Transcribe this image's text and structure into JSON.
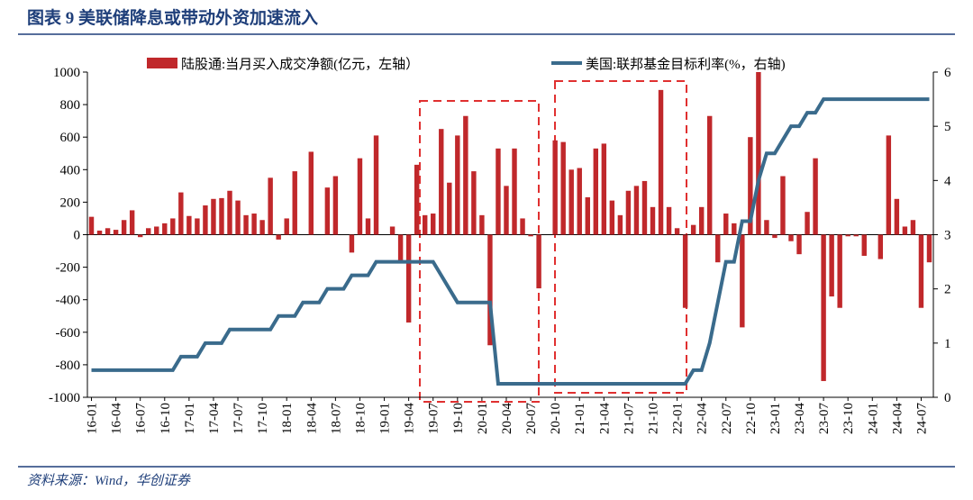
{
  "chart_data": {
    "type": "bar_line",
    "title": "图表 9 美联储降息或带动外资加速流入",
    "source": "资料来源：Wind，华创证券",
    "categories": [
      "16-01",
      null,
      null,
      "16-04",
      null,
      null,
      "16-07",
      null,
      null,
      "16-10",
      null,
      null,
      "17-01",
      null,
      null,
      "17-04",
      null,
      null,
      "17-07",
      null,
      null,
      "17-10",
      null,
      null,
      "18-01",
      null,
      null,
      "18-04",
      null,
      null,
      "18-07",
      null,
      null,
      "18-10",
      null,
      null,
      "19-01",
      null,
      null,
      "19-04",
      null,
      null,
      "19-07",
      null,
      null,
      "19-10",
      null,
      null,
      "20-01",
      null,
      null,
      "20-04",
      null,
      null,
      "20-07",
      null,
      null,
      "20-10",
      null,
      null,
      "21-01",
      null,
      null,
      "21-04",
      null,
      null,
      "21-07",
      null,
      null,
      "21-10",
      null,
      null,
      "22-01",
      null,
      null,
      "22-04",
      null,
      null,
      "22-07",
      null,
      null,
      "22-10",
      null,
      null,
      "23-01",
      null,
      null,
      "23-04",
      null,
      null,
      "23-07",
      null,
      null,
      "23-10",
      null,
      null,
      "24-01",
      null,
      null,
      "24-04",
      null,
      null,
      "24-07",
      null
    ],
    "series": [
      {
        "name": "陆股通:当月买入成交净额(亿元，左轴）",
        "type": "bar",
        "color": "#c0282b",
        "values": [
          110,
          25,
          40,
          30,
          90,
          150,
          -15,
          40,
          50,
          70,
          100,
          260,
          115,
          100,
          180,
          220,
          225,
          270,
          210,
          120,
          130,
          90,
          350,
          -30,
          100,
          390,
          0,
          510,
          0,
          290,
          360,
          0,
          -110,
          470,
          100,
          610,
          0,
          50,
          -170,
          -540,
          430,
          120,
          130,
          650,
          320,
          610,
          730,
          390,
          120,
          -680,
          530,
          300,
          530,
          100,
          -10,
          -330,
          0,
          580,
          570,
          400,
          410,
          230,
          530,
          560,
          210,
          120,
          270,
          300,
          330,
          170,
          890,
          170,
          40,
          -450,
          60,
          170,
          730,
          -170,
          130,
          70,
          -570,
          600,
          1000,
          90,
          -20,
          360,
          -40,
          -120,
          140,
          470,
          -900,
          -380,
          -450,
          -10,
          -10,
          -130,
          0,
          -150,
          610,
          220,
          50,
          90,
          -450,
          -170
        ]
      },
      {
        "name": "美国:联邦基金目标利率(%，右轴)",
        "type": "line",
        "axis": "y2",
        "color": "#3a6b8c",
        "values": [
          0.5,
          0.5,
          0.5,
          0.5,
          0.5,
          0.5,
          0.5,
          0.5,
          0.5,
          0.5,
          0.5,
          0.75,
          0.75,
          0.75,
          1,
          1,
          1,
          1.25,
          1.25,
          1.25,
          1.25,
          1.25,
          1.25,
          1.5,
          1.5,
          1.5,
          1.75,
          1.75,
          1.75,
          2,
          2,
          2,
          2.25,
          2.25,
          2.25,
          2.5,
          2.5,
          2.5,
          2.5,
          2.5,
          2.5,
          2.5,
          2.5,
          2.25,
          2,
          1.75,
          1.75,
          1.75,
          1.75,
          1.75,
          0.25,
          0.25,
          0.25,
          0.25,
          0.25,
          0.25,
          0.25,
          0.25,
          0.25,
          0.25,
          0.25,
          0.25,
          0.25,
          0.25,
          0.25,
          0.25,
          0.25,
          0.25,
          0.25,
          0.25,
          0.25,
          0.25,
          0.25,
          0.25,
          0.5,
          0.5,
          1,
          1.75,
          2.5,
          2.5,
          3.25,
          3.25,
          4,
          4.5,
          4.5,
          4.75,
          5,
          5,
          5.25,
          5.25,
          5.5,
          5.5,
          5.5,
          5.5,
          5.5,
          5.5,
          5.5,
          5.5,
          5.5,
          5.5,
          5.5,
          5.5,
          5.5,
          5.5
        ]
      }
    ],
    "ylim": [
      -1000,
      1000
    ],
    "yticks": [
      -1000,
      -800,
      -600,
      -400,
      -200,
      0,
      200,
      400,
      600,
      800,
      1000
    ],
    "y2lim": [
      0,
      6
    ],
    "y2ticks": [
      0,
      1,
      2,
      3,
      4,
      5,
      6
    ]
  }
}
